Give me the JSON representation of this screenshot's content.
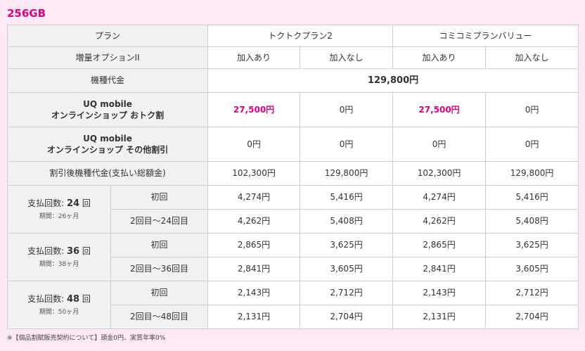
{
  "title": "256GB",
  "header": {
    "plan_label": "プラン",
    "plan_a": "トクトクプラン2",
    "plan_b": "コミコミプランバリュー",
    "option_label": "増量オプションII",
    "with_option": "加入あり",
    "without_option": "加入なし"
  },
  "device_price": {
    "label": "機種代金",
    "value": "129,800円"
  },
  "online_discount": {
    "label_line1": "UQ mobile",
    "label_line2": "オンラインショップ おトク割",
    "values": [
      "27,500円",
      "0円",
      "27,500円",
      "0円"
    ]
  },
  "other_discount": {
    "label_line1": "UQ mobile",
    "label_line2": "オンラインショップ その他割引",
    "values": [
      "0円",
      "0円",
      "0円",
      "0円"
    ]
  },
  "after_discount": {
    "label": "割引後機種代金(支払い総額金)",
    "values": [
      "102,300円",
      "129,800円",
      "102,300円",
      "129,800円"
    ]
  },
  "installments": [
    {
      "label_prefix": "支払回数: ",
      "count": "24",
      "label_suffix": " 回",
      "period": "期間：26ヶ月",
      "first_label": "初回",
      "first_values": [
        "4,274円",
        "5,416円",
        "4,274円",
        "5,416円"
      ],
      "rest_label": "2回目〜24回目",
      "rest_values": [
        "4,262円",
        "5,408円",
        "4,262円",
        "5,408円"
      ]
    },
    {
      "label_prefix": "支払回数: ",
      "count": "36",
      "label_suffix": " 回",
      "period": "期間：38ヶ月",
      "first_label": "初回",
      "first_values": [
        "2,865円",
        "3,625円",
        "2,865円",
        "3,625円"
      ],
      "rest_label": "2回目〜36回目",
      "rest_values": [
        "2,841円",
        "3,605円",
        "2,841円",
        "3,605円"
      ]
    },
    {
      "label_prefix": "支払回数: ",
      "count": "48",
      "label_suffix": " 回",
      "period": "期間：50ヶ月",
      "first_label": "初回",
      "first_values": [
        "2,143円",
        "2,712円",
        "2,143円",
        "2,712円"
      ],
      "rest_label": "2回目〜48回目",
      "rest_values": [
        "2,131円",
        "2,704円",
        "2,131円",
        "2,704円"
      ]
    }
  ],
  "note": "※【個品割賦販売契約について】頭金0円、実質年率0%",
  "colors": {
    "accent": "#e4007f",
    "background": "#fce9f3",
    "label_cell": "#f1f1f1"
  }
}
